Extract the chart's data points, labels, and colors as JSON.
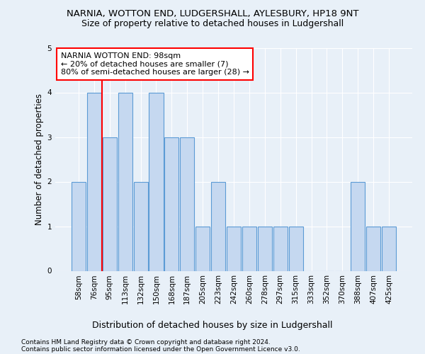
{
  "title": "NARNIA, WOTTON END, LUDGERSHALL, AYLESBURY, HP18 9NT",
  "subtitle": "Size of property relative to detached houses in Ludgershall",
  "xlabel": "Distribution of detached houses by size in Ludgershall",
  "ylabel": "Number of detached properties",
  "categories": [
    "58sqm",
    "76sqm",
    "95sqm",
    "113sqm",
    "132sqm",
    "150sqm",
    "168sqm",
    "187sqm",
    "205sqm",
    "223sqm",
    "242sqm",
    "260sqm",
    "278sqm",
    "297sqm",
    "315sqm",
    "333sqm",
    "352sqm",
    "370sqm",
    "388sqm",
    "407sqm",
    "425sqm"
  ],
  "values": [
    2,
    4,
    3,
    4,
    2,
    4,
    3,
    3,
    1,
    2,
    1,
    1,
    1,
    1,
    1,
    0,
    0,
    0,
    2,
    1,
    1
  ],
  "bar_color": "#c5d8f0",
  "bar_edge_color": "#5b9bd5",
  "redline_index": 2,
  "annotation_text": "NARNIA WOTTON END: 98sqm\n← 20% of detached houses are smaller (7)\n80% of semi-detached houses are larger (28) →",
  "annotation_box_color": "white",
  "annotation_box_edge_color": "red",
  "ylim": [
    0,
    5
  ],
  "yticks": [
    0,
    1,
    2,
    3,
    4,
    5
  ],
  "footnote1": "Contains HM Land Registry data © Crown copyright and database right 2024.",
  "footnote2": "Contains public sector information licensed under the Open Government Licence v3.0.",
  "background_color": "#e8f0f8",
  "title_fontsize": 9.5,
  "subtitle_fontsize": 9,
  "xlabel_fontsize": 9,
  "ylabel_fontsize": 8.5,
  "tick_fontsize": 7.5,
  "annotation_fontsize": 8,
  "footnote_fontsize": 6.5
}
